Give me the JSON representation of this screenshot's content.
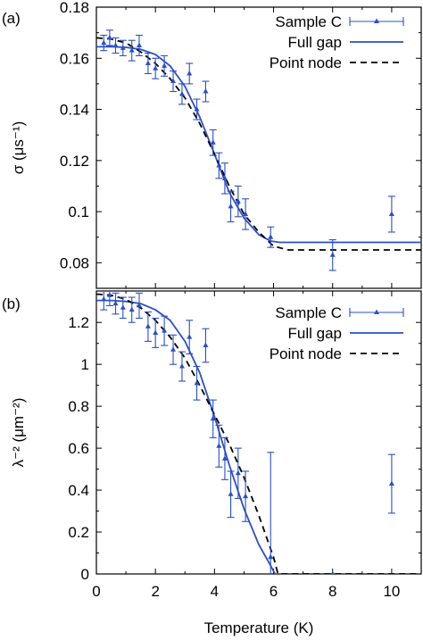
{
  "figure": {
    "shared_xlabel": "Temperature (K)",
    "series_colors": {
      "data": "#2a4fc9",
      "full_gap": "#2a4fc9",
      "point_node": "#000000"
    }
  },
  "chart_data": [
    {
      "type": "line",
      "panel_label": "(a)",
      "xlabel": "Temperature (K)",
      "ylabel": "σ (μs⁻¹)",
      "xlim": [
        0,
        11
      ],
      "ylim": [
        0.07,
        0.18
      ],
      "xticks": [
        "0",
        "2",
        "4",
        "6",
        "8",
        "10"
      ],
      "xtick_values": [
        0,
        2,
        4,
        6,
        8,
        10
      ],
      "yticks": [
        "0.08",
        "0.1",
        "0.12",
        "0.14",
        "0.16",
        "0.18"
      ],
      "ytick_values": [
        0.08,
        0.1,
        0.12,
        0.14,
        0.16,
        0.18
      ],
      "legend_position": "top-right",
      "series": [
        {
          "name": "Sample C",
          "kind": "points-with-errorbars",
          "x": [
            0.25,
            0.45,
            0.65,
            0.9,
            1.2,
            1.45,
            1.75,
            2.0,
            2.3,
            2.6,
            2.9,
            3.15,
            3.4,
            3.7,
            3.95,
            4.15,
            4.35,
            4.55,
            4.8,
            5.05,
            5.9,
            8.0,
            10.0
          ],
          "y": [
            0.166,
            0.168,
            0.165,
            0.164,
            0.163,
            0.165,
            0.158,
            0.156,
            0.157,
            0.151,
            0.146,
            0.154,
            0.14,
            0.147,
            0.127,
            0.118,
            0.113,
            0.102,
            0.104,
            0.099,
            0.09,
            0.083,
            0.099
          ],
          "err": [
            0.003,
            0.003,
            0.003,
            0.003,
            0.004,
            0.004,
            0.004,
            0.004,
            0.004,
            0.004,
            0.004,
            0.004,
            0.004,
            0.004,
            0.005,
            0.005,
            0.006,
            0.006,
            0.006,
            0.006,
            0.004,
            0.006,
            0.007
          ]
        },
        {
          "name": "Full gap",
          "kind": "line",
          "x": [
            0,
            0.5,
            1,
            1.5,
            2,
            2.5,
            3,
            3.5,
            4,
            4.5,
            5,
            5.5,
            5.9,
            6.2,
            7,
            8,
            9,
            10,
            11
          ],
          "y": [
            0.1645,
            0.1645,
            0.1643,
            0.1635,
            0.1615,
            0.157,
            0.149,
            0.137,
            0.1225,
            0.1075,
            0.0975,
            0.091,
            0.0885,
            0.088,
            0.088,
            0.088,
            0.088,
            0.088,
            0.088
          ]
        },
        {
          "name": "Point node",
          "kind": "dashed-line",
          "x": [
            0,
            0.5,
            1,
            1.5,
            2,
            2.5,
            3,
            3.5,
            4,
            4.5,
            5,
            5.5,
            6.0,
            6.5,
            7,
            8,
            9,
            10,
            11
          ],
          "y": [
            0.168,
            0.1675,
            0.166,
            0.1625,
            0.158,
            0.152,
            0.1445,
            0.1345,
            0.1225,
            0.11,
            0.099,
            0.092,
            0.0865,
            0.085,
            0.085,
            0.085,
            0.085,
            0.085,
            0.085
          ]
        }
      ]
    },
    {
      "type": "line",
      "panel_label": "(b)",
      "xlabel": "Temperature (K)",
      "ylabel": "λ⁻² (μm⁻²)",
      "xlim": [
        0,
        11
      ],
      "ylim": [
        0,
        1.35
      ],
      "xticks": [
        "0",
        "2",
        "4",
        "6",
        "8",
        "10"
      ],
      "xtick_values": [
        0,
        2,
        4,
        6,
        8,
        10
      ],
      "yticks": [
        "0",
        "0.2",
        "0.4",
        "0.6",
        "0.8",
        "1",
        "1.2"
      ],
      "ytick_values": [
        0,
        0.2,
        0.4,
        0.6,
        0.8,
        1.0,
        1.2
      ],
      "legend_position": "top-right",
      "series": [
        {
          "name": "Sample C",
          "kind": "points-with-errorbars",
          "x": [
            0.25,
            0.45,
            0.65,
            0.9,
            1.2,
            1.45,
            1.75,
            2.0,
            2.3,
            2.6,
            2.9,
            3.15,
            3.4,
            3.7,
            3.95,
            4.15,
            4.35,
            4.55,
            4.8,
            5.05,
            5.9,
            8.0,
            10.0
          ],
          "y": [
            1.31,
            1.33,
            1.29,
            1.27,
            1.26,
            1.28,
            1.18,
            1.15,
            1.16,
            1.07,
            0.99,
            1.13,
            0.91,
            1.09,
            0.74,
            0.61,
            0.55,
            0.38,
            0.48,
            0.37,
            0.08,
            0.0,
            0.43
          ],
          "err": [
            0.05,
            0.05,
            0.05,
            0.05,
            0.06,
            0.06,
            0.07,
            0.07,
            0.07,
            0.07,
            0.07,
            0.08,
            0.08,
            0.08,
            0.09,
            0.1,
            0.1,
            0.11,
            0.12,
            0.12,
            0.5,
            0.0,
            0.14
          ]
        },
        {
          "name": "Full gap",
          "kind": "line",
          "x": [
            0,
            0.5,
            1,
            1.5,
            2,
            2.5,
            3,
            3.5,
            4,
            4.5,
            5,
            5.5,
            5.9,
            6.05,
            7,
            8,
            9,
            10,
            11
          ],
          "y": [
            1.305,
            1.305,
            1.3,
            1.29,
            1.26,
            1.21,
            1.11,
            0.96,
            0.75,
            0.52,
            0.31,
            0.14,
            0.04,
            0.0,
            0.0,
            0.0,
            0.0,
            0.0,
            0.0
          ],
          "color": "#2a4fc9"
        },
        {
          "name": "Point node",
          "kind": "dashed-line",
          "x": [
            0,
            0.5,
            1,
            1.5,
            2,
            2.5,
            3,
            3.5,
            4,
            4.5,
            5,
            5.5,
            6.0,
            6.15,
            7,
            8,
            9,
            10,
            11
          ],
          "y": [
            1.335,
            1.33,
            1.31,
            1.27,
            1.21,
            1.13,
            1.03,
            0.9,
            0.76,
            0.62,
            0.46,
            0.28,
            0.08,
            0.0,
            0.0,
            0.0,
            0.0,
            0.0,
            0.0
          ]
        }
      ]
    }
  ]
}
